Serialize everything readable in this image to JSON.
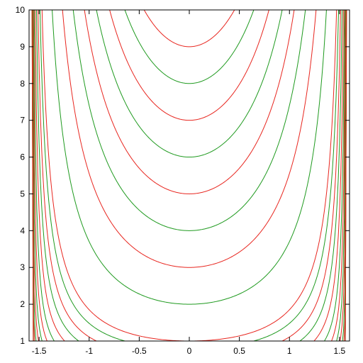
{
  "chart_data": {
    "type": "line",
    "title": "",
    "xlabel": "",
    "ylabel": "",
    "xlim": [
      -1.6,
      1.6
    ],
    "ylim": [
      1,
      10
    ],
    "x_ticks": [
      -1.5,
      -1,
      -0.5,
      0,
      0.5,
      1,
      1.5
    ],
    "x_tick_labels": [
      "-1.5",
      "-1",
      "-0.5",
      "0",
      "0.5",
      "1",
      "1.5"
    ],
    "y_ticks": [
      1,
      2,
      3,
      4,
      5,
      6,
      7,
      8,
      9,
      10
    ],
    "y_tick_labels": [
      "1",
      "2",
      "3",
      "4",
      "5",
      "6",
      "7",
      "8",
      "9",
      "10"
    ],
    "grid": false,
    "legend": "none",
    "curve_family": "y = c / cos(x)",
    "series": [
      {
        "c": 1.0,
        "color": "#e8261f"
      },
      {
        "c": 2.0,
        "color": "#1f9a1f"
      },
      {
        "c": 3.0,
        "color": "#e8261f"
      },
      {
        "c": 4.0,
        "color": "#1f9a1f"
      },
      {
        "c": 5.0,
        "color": "#e8261f"
      },
      {
        "c": 6.0,
        "color": "#1f9a1f"
      },
      {
        "c": 7.0,
        "color": "#e8261f"
      },
      {
        "c": 8.0,
        "color": "#1f9a1f"
      },
      {
        "c": 9.0,
        "color": "#e8261f"
      },
      {
        "c": 0.8,
        "color": "#1f9a1f"
      },
      {
        "c": 0.6,
        "color": "#e8261f"
      },
      {
        "c": 0.45,
        "color": "#1f9a1f"
      },
      {
        "c": 0.32,
        "color": "#e8261f"
      },
      {
        "c": 0.22,
        "color": "#1f9a1f"
      },
      {
        "c": 0.15,
        "color": "#e8261f"
      },
      {
        "c": 0.1,
        "color": "#1f9a1f"
      },
      {
        "c": 0.065,
        "color": "#e8261f"
      },
      {
        "c": 0.04,
        "color": "#1f9a1f"
      },
      {
        "c": 0.025,
        "color": "#e8261f"
      },
      {
        "c": 0.015,
        "color": "#1f9a1f"
      },
      {
        "c": 0.009,
        "color": "#e8261f"
      },
      {
        "c": 0.005,
        "color": "#1f9a1f"
      },
      {
        "c": 0.003,
        "color": "#e8261f"
      }
    ]
  }
}
